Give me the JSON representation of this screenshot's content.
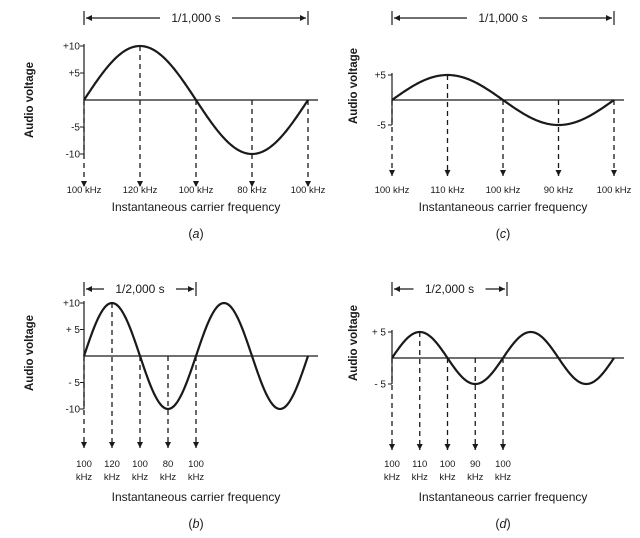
{
  "panels": [
    {
      "id": "a",
      "caption": "a",
      "period_label": "1/1,000 s",
      "ylabel": "Audio voltage",
      "y_ticks": [
        "+10",
        "+5",
        "-5",
        "-10"
      ],
      "freq_labels": [
        "100 kHz",
        "120 kHz",
        "100 kHz",
        "80 kHz",
        "100 kHz"
      ],
      "xlabel": "Instantaneous carrier frequency",
      "amplitude": 10,
      "cycles": 1
    },
    {
      "id": "b",
      "caption": "b",
      "period_label": "1/2,000 s",
      "ylabel": "Audio voltage",
      "y_ticks": [
        "+10",
        "+ 5",
        "- 5",
        "-10"
      ],
      "freq_labels": [
        [
          "100",
          "kHz"
        ],
        [
          "120",
          "kHz"
        ],
        [
          "100",
          "kHz"
        ],
        [
          "80",
          "kHz"
        ],
        [
          "100",
          "kHz"
        ]
      ],
      "xlabel": "Instantaneous carrier frequency",
      "amplitude": 10,
      "cycles": 2
    },
    {
      "id": "c",
      "caption": "c",
      "period_label": "1/1,000 s",
      "ylabel": "Audio voltage",
      "y_ticks": [
        "+5",
        "-5"
      ],
      "freq_labels": [
        "100 kHz",
        "110 kHz",
        "100 kHz",
        "90 kHz",
        "100 kHz"
      ],
      "xlabel": "Instantaneous carrier frequency",
      "amplitude": 5,
      "cycles": 1
    },
    {
      "id": "d",
      "caption": "d",
      "period_label": "1/2,000 s",
      "ylabel": "Audio voltage",
      "y_ticks": [
        "+ 5",
        "- 5"
      ],
      "freq_labels": [
        [
          "100",
          "kHz"
        ],
        [
          "110",
          "kHz"
        ],
        [
          "100",
          "kHz"
        ],
        [
          "90",
          "kHz"
        ],
        [
          "100",
          "kHz"
        ]
      ],
      "xlabel": "Instantaneous carrier frequency",
      "amplitude": 5,
      "cycles": 2
    }
  ]
}
